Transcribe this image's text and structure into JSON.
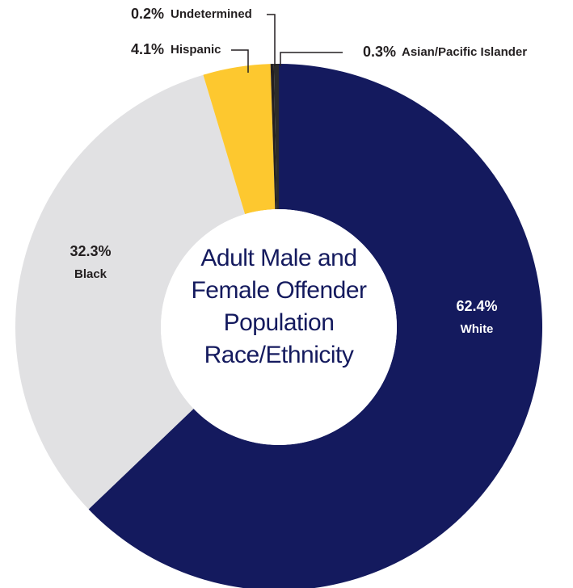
{
  "chart_data": {
    "type": "donut",
    "title": "Adult Male and Female Offender Population Race/Ethnicity",
    "categories": [
      "White",
      "Black",
      "Hispanic",
      "Undetermined",
      "Asian/Pacific Islander"
    ],
    "values": [
      62.4,
      32.3,
      4.1,
      0.2,
      0.3
    ],
    "value_labels": [
      "62.4%",
      "32.3%",
      "4.1%",
      "0.2%",
      "0.3%"
    ],
    "colors": [
      "#141a5e",
      "#e1e1e3",
      "#fdc82f",
      "#231f20",
      "#2b2b2b"
    ]
  }
}
